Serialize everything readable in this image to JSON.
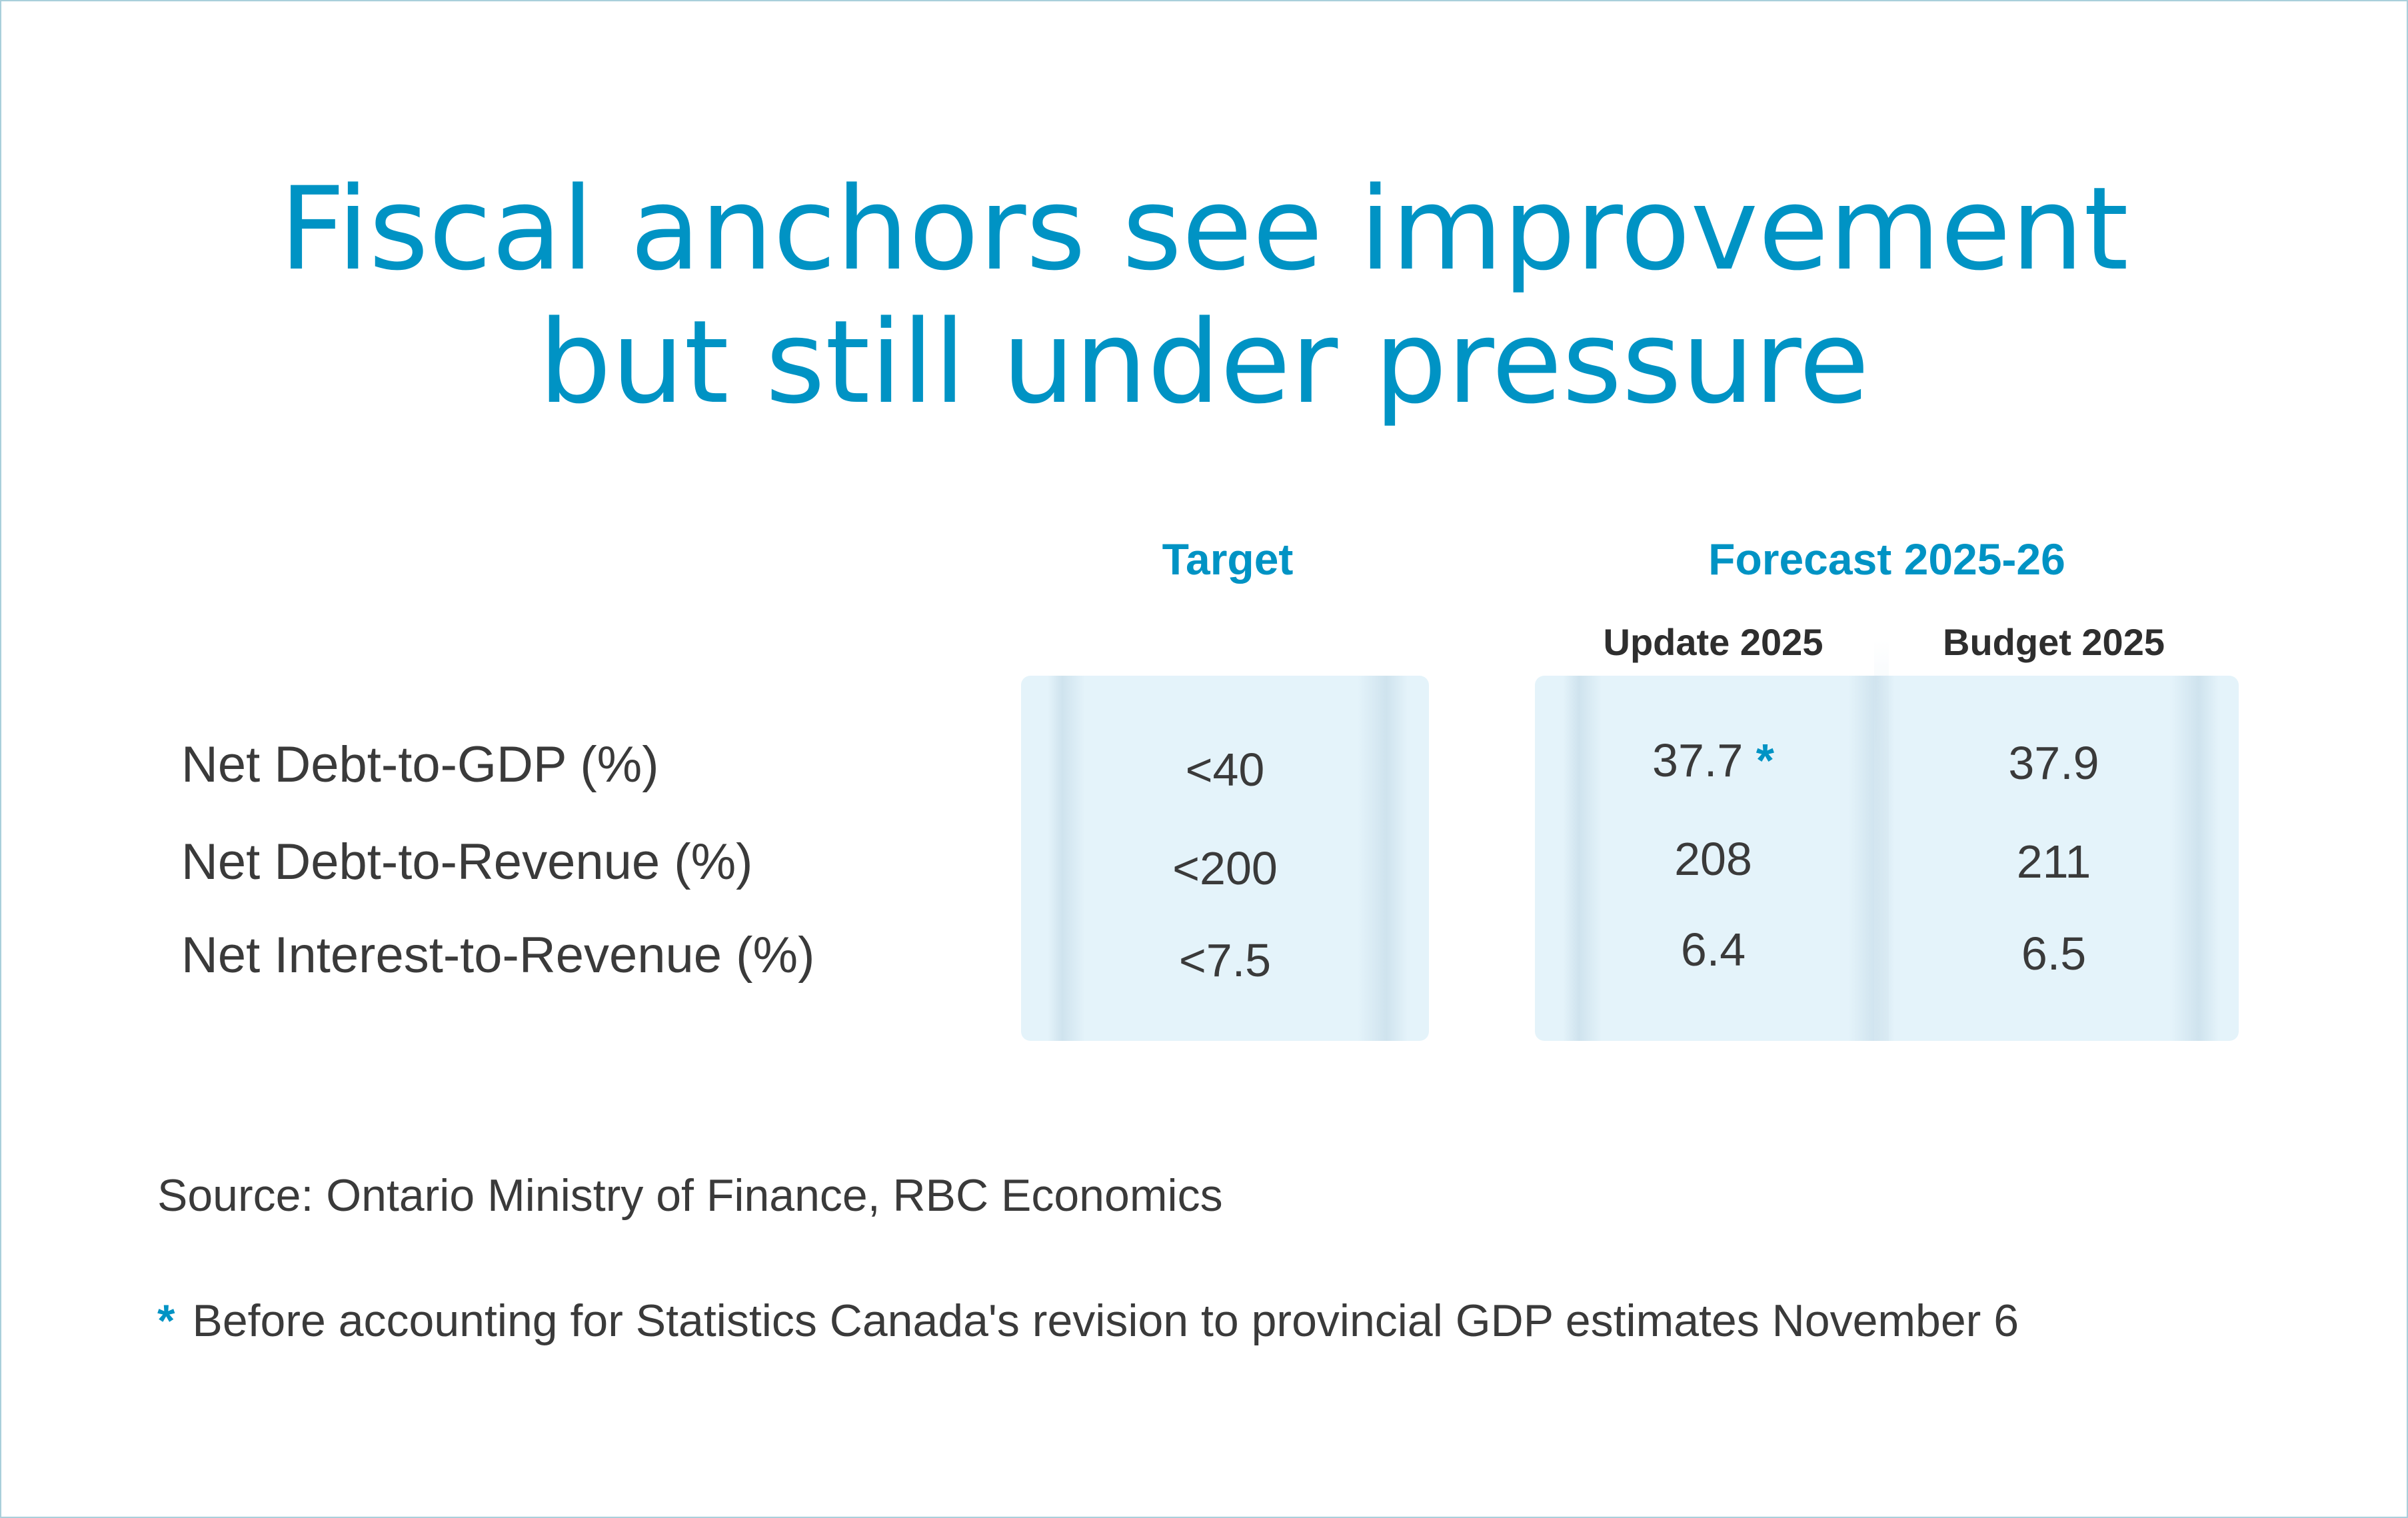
{
  "title": {
    "line1": "Fiscal anchors see improvement",
    "line2": "but still under pressure"
  },
  "colors": {
    "accent": "#0093c4",
    "panel": "#e4f3fa",
    "text": "#3a3a3a",
    "border": "#a9cfdb"
  },
  "chart_data": {
    "type": "table",
    "title": "Fiscal anchors see improvement but still under pressure",
    "column_groups": [
      {
        "label": "Target",
        "columns": [
          ""
        ]
      },
      {
        "label": "Forecast 2025-26",
        "columns": [
          "Update 2025",
          "Budget 2025"
        ]
      }
    ],
    "rows": [
      {
        "label": "Net Debt-to-GDP (%)",
        "target": "<40",
        "update_2025": "37.7",
        "update_2025_flag": "*",
        "budget_2025": "37.9"
      },
      {
        "label": "Net Debt-to-Revenue (%)",
        "target": "<200",
        "update_2025": "208",
        "update_2025_flag": "",
        "budget_2025": "211"
      },
      {
        "label": "Net Interest-to-Revenue (%)",
        "target": "<7.5",
        "update_2025": "6.4",
        "update_2025_flag": "",
        "budget_2025": "6.5"
      }
    ]
  },
  "headers": {
    "target": "Target",
    "forecast": "Forecast 2025-26",
    "update": "Update 2025",
    "budget": "Budget 2025"
  },
  "source": "Source: Ontario Ministry of Finance, RBC Economics",
  "footnote": {
    "marker": "*",
    "text": "Before accounting for Statistics Canada's revision to provincial GDP estimates November 6"
  }
}
